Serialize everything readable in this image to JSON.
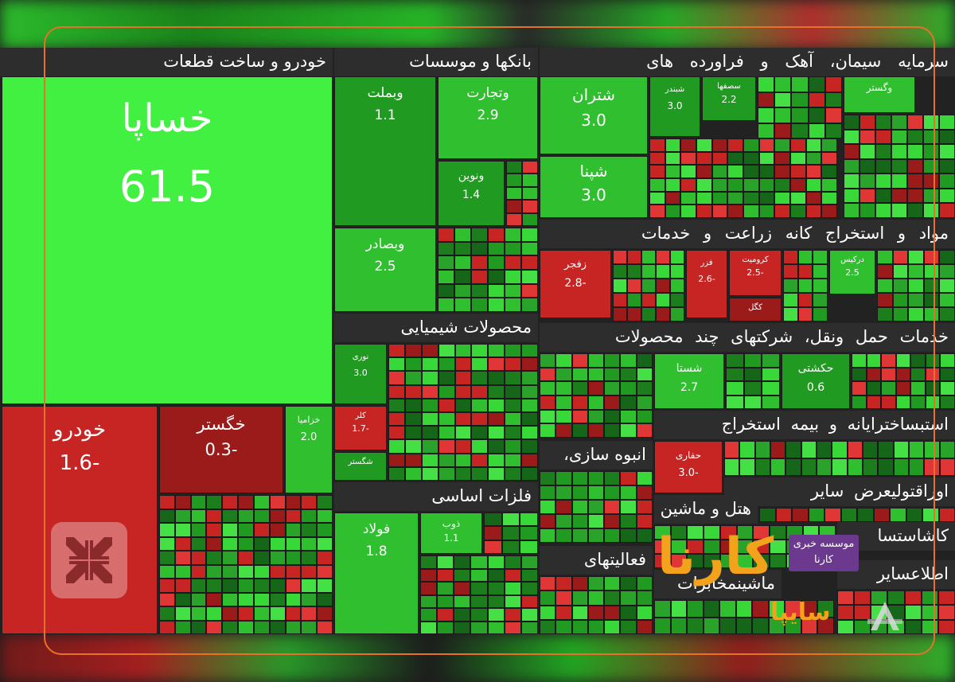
{
  "sectors": [
    "خودرو و ساخت قطعات",
    "بانکها و موسسات",
    "سرمایه",
    "سیمان، آهک و",
    "فراورده های",
    "استخراج کانه",
    "زراعت و خدمات",
    "مواد و",
    "محصولات شیمیایی",
    "خدمات",
    "حمل ونقل،",
    "شرکتهای چند",
    "محصولات",
    "بیمه",
    "استخراج",
    "رایانه و",
    "ساخت",
    "استب",
    "انبوه سازی،",
    "فلزات اساسی",
    "اوراق",
    "تولیعرض سایر",
    "هتل و",
    "ماشین",
    "کاشاستسا",
    "فعالیتهای",
    "ماشین",
    "مخابرات",
    "اطلاعسایر"
  ],
  "tiles": {
    "khasapa": {
      "name": "خساپا",
      "value": "61.5"
    },
    "khodro": {
      "name": "خودرو",
      "value": "1.6-"
    },
    "khegostar": {
      "name": "خگستر",
      "value": "0.3-"
    },
    "khazamia": {
      "name": "خزامیا",
      "value": "2.0"
    },
    "vabemellat": {
      "name": "وبملت",
      "value": "1.1"
    },
    "vatejarat": {
      "name": "وتجارت",
      "value": "2.9"
    },
    "vanovin": {
      "name": "ونوین",
      "value": "1.4"
    },
    "vabsaderat": {
      "name": "وبصادر",
      "value": "2.5"
    },
    "shetran": {
      "name": "شتران",
      "value": "3.0"
    },
    "shepna": {
      "name": "شپنا",
      "value": "3.0"
    },
    "shebandar": {
      "name": "شبندر",
      "value": "3.0"
    },
    "sesofaha": {
      "name": "سصفها",
      "value": "2.2"
    },
    "zefajr": {
      "name": "زفجر",
      "value": "2.8-"
    },
    "kromit": {
      "name": "کرومیت",
      "value": "2.5-"
    },
    "fazar": {
      "name": "فزر",
      "value": "2.6-"
    },
    "shasta": {
      "name": "شستا",
      "value": "2.7"
    },
    "hakeshti": {
      "name": "حکشتی",
      "value": "0.6"
    },
    "hafari": {
      "name": "حفاری",
      "value": "3.0-"
    },
    "folad": {
      "name": "فولاد",
      "value": "1.8"
    },
    "zob": {
      "name": "ذوب",
      "value": "1.1"
    },
    "kegol": {
      "name": "کگل",
      "value": ""
    },
    "kaler": {
      "name": "کلر",
      "value": "1.7-"
    },
    "shegostar": {
      "name": "شگستر",
      "value": ""
    },
    "noori": {
      "name": "نوری",
      "value": "3.0"
    },
    "vagostar": {
      "name": "وگستر",
      "value": ""
    },
    "derkis": {
      "name": "درکیس",
      "value": "2.5"
    }
  },
  "logo": {
    "brand": "کارنا",
    "tagline_1": "موسسه خبری",
    "tagline_2": "کارنا"
  },
  "watermark": {
    "brand": "سایپا"
  }
}
